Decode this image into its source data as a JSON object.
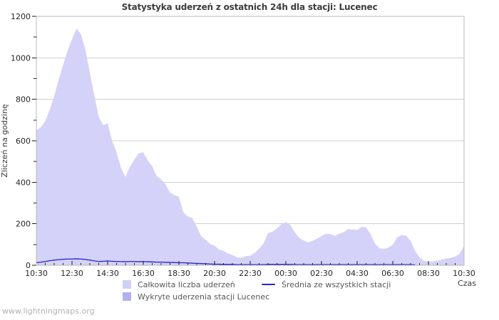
{
  "page": {
    "watermark": "www.lightningmaps.org"
  },
  "chart_data": {
    "type": "area",
    "title": "Statystyka uderzeń z ostatnich 24h dla stacji: Lucenec",
    "xlabel": "Czas",
    "ylabel": "Zliczeń na godzinę",
    "ylim": [
      0,
      1200
    ],
    "y_major_step": 200,
    "y_minor_step": 100,
    "grid": "horizontal-major",
    "legend_position": "bottom",
    "x_tick_labels": [
      "10:30",
      "12:30",
      "14:30",
      "16:30",
      "18:30",
      "20:30",
      "22:30",
      "00:30",
      "02:30",
      "04:30",
      "06:30",
      "08:30",
      "10:30"
    ],
    "x_minor_tick_minutes": 30,
    "time_step_minutes": 15,
    "series": [
      {
        "name": "Całkowita liczba uderzeń",
        "type": "area",
        "color": "#d4d2f8",
        "values": [
          650,
          665,
          695,
          750,
          815,
          895,
          965,
          1035,
          1090,
          1140,
          1115,
          1040,
          930,
          820,
          715,
          675,
          685,
          600,
          545,
          470,
          425,
          475,
          510,
          540,
          545,
          505,
          478,
          430,
          415,
          390,
          350,
          338,
          330,
          255,
          235,
          228,
          185,
          140,
          122,
          103,
          95,
          76,
          69,
          57,
          50,
          38,
          36,
          44,
          46,
          60,
          80,
          105,
          155,
          162,
          178,
          198,
          208,
          195,
          158,
          132,
          119,
          110,
          118,
          128,
          142,
          152,
          150,
          142,
          152,
          160,
          175,
          172,
          170,
          185,
          182,
          150,
          105,
          82,
          79,
          85,
          100,
          135,
          146,
          142,
          118,
          70,
          38,
          22,
          17,
          18,
          22,
          27,
          33,
          36,
          42,
          55,
          95
        ]
      },
      {
        "name": "Wykryte uderzenia stacji Lucenec",
        "type": "area",
        "color": "#b2b1ef",
        "values": [
          0,
          0,
          0,
          0,
          0,
          0,
          0,
          0,
          0,
          0,
          0,
          0,
          0,
          0,
          0,
          0,
          0,
          0,
          0,
          0,
          0,
          0,
          0,
          0,
          0,
          0,
          0,
          0,
          0,
          0,
          0,
          0,
          0,
          0,
          0,
          0,
          0,
          0,
          0,
          0,
          0,
          0,
          0,
          0,
          0,
          0,
          0,
          0,
          0,
          0,
          0,
          0,
          0,
          0,
          0,
          0,
          0,
          0,
          0,
          0,
          0,
          0,
          0,
          0,
          0,
          0,
          0,
          0,
          0,
          0,
          0,
          0,
          0,
          0,
          0,
          0,
          0,
          0,
          0,
          0,
          0,
          0,
          0,
          0,
          0,
          0,
          0,
          0,
          0,
          0,
          0,
          0,
          0,
          0,
          0,
          0,
          0
        ]
      },
      {
        "name": "Średnia ze wszystkich stacji",
        "type": "line",
        "color": "#2424ce",
        "values": [
          12,
          15,
          18,
          22,
          25,
          27,
          29,
          30,
          30,
          31,
          30,
          28,
          25,
          21,
          18,
          19,
          21,
          19,
          18,
          18,
          17,
          18,
          18,
          17,
          18,
          17,
          16,
          15,
          15,
          14,
          14,
          13,
          12,
          12,
          11,
          10,
          9,
          8,
          7,
          6,
          5,
          5,
          4,
          4,
          4,
          3,
          3,
          3,
          3,
          3,
          3,
          3,
          4,
          4,
          4,
          4,
          4,
          4,
          3,
          3,
          3,
          3,
          3,
          3,
          3,
          3,
          3,
          3,
          3,
          3,
          3,
          3,
          3,
          3,
          3,
          3,
          3,
          3,
          3,
          3,
          3,
          3,
          3,
          3,
          3,
          2,
          null,
          null,
          null,
          null,
          null,
          null,
          null,
          null,
          null,
          null,
          null
        ]
      }
    ],
    "axis_colors": {
      "grid": "#cfcfcf",
      "border": "#b8b8b8",
      "tick": "#1a1a1a",
      "tick_label": "#262626"
    }
  },
  "legend": {
    "items": [
      {
        "label": "Całkowita liczba uderzeń",
        "kind": "area",
        "color": "#d0cff7"
      },
      {
        "label": "Średnia ze wszystkich stacji",
        "kind": "line",
        "color": "#2424ce"
      },
      {
        "label": "Wykryte uderzenia stacji Lucenec",
        "kind": "area",
        "color": "#b2b1ef"
      }
    ]
  }
}
